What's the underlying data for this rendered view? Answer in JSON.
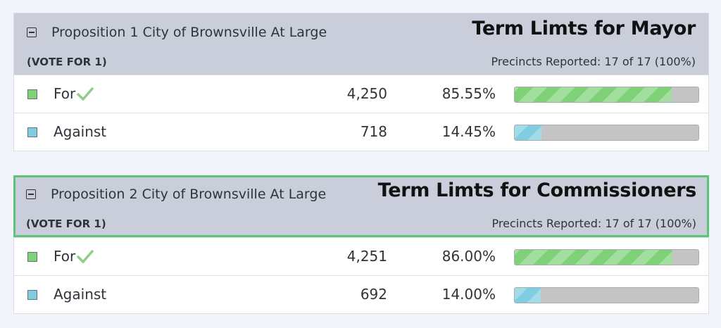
{
  "colors": {
    "for": "#7ed177",
    "against": "#7fcde0",
    "highlight_border": "#5cc477",
    "header_bg": "#c9ceda"
  },
  "races": [
    {
      "proposition": "Proposition 1 City of Brownsville At Large",
      "term_title": "Term Limts for Mayor",
      "vote_for": "(VOTE FOR 1)",
      "precincts": "Precincts Reported: 17 of 17 (100%)",
      "choices": [
        {
          "label": "For",
          "votes": "4,250",
          "percent": "85.55%",
          "fraction": 0.8555,
          "winner": true,
          "color": "green"
        },
        {
          "label": "Against",
          "votes": "718",
          "percent": "14.45%",
          "fraction": 0.1445,
          "winner": false,
          "color": "blue"
        }
      ]
    },
    {
      "proposition": "Proposition 2 City of Brownsville At Large",
      "term_title": "Term Limts for Commissioners",
      "vote_for": "(VOTE FOR 1)",
      "precincts": "Precincts Reported: 17 of 17 (100%)",
      "choices": [
        {
          "label": "For",
          "votes": "4,251",
          "percent": "86.00%",
          "fraction": 0.86,
          "winner": true,
          "color": "green"
        },
        {
          "label": "Against",
          "votes": "692",
          "percent": "14.00%",
          "fraction": 0.14,
          "winner": false,
          "color": "blue"
        }
      ]
    }
  ]
}
